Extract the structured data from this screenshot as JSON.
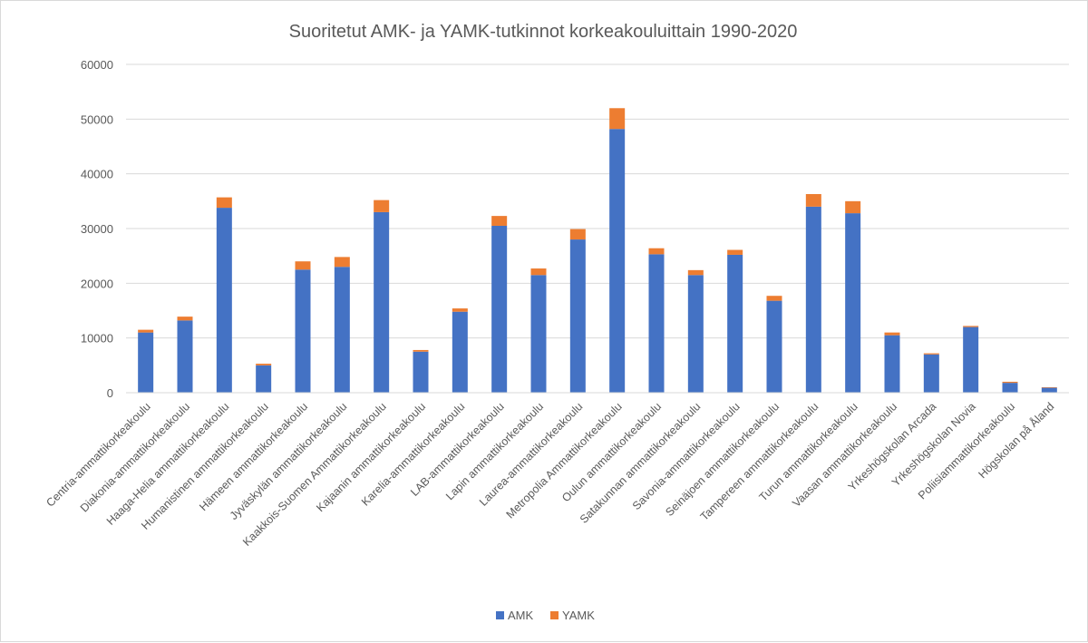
{
  "chart_data": {
    "type": "bar",
    "stacked": true,
    "title": "Suoritetut AMK- ja YAMK-tutkinnot korkeakouluittain 1990-2020",
    "ylim": [
      0,
      60000
    ],
    "yticks": [
      0,
      10000,
      20000,
      30000,
      40000,
      50000,
      60000
    ],
    "grid": true,
    "legend_position": "bottom",
    "categories": [
      "Centria-ammattikorkeakoulu",
      "Diakonia-ammattikorkeakoulu",
      "Haaga-Helia ammattikorkeakoulu",
      "Humanistinen ammattikorkeakoulu",
      "Hämeen ammattikorkeakoulu",
      "Jyväskylän ammattikorkeakoulu",
      "Kaakkois-Suomen Ammattikorkeakoulu",
      "Kajaanin ammattikorkeakoulu",
      "Karelia-ammattikorkeakoulu",
      "LAB-ammattikorkeakoulu",
      "Lapin ammattikorkeakoulu",
      "Laurea-ammattikorkeakoulu",
      "Metropolia Ammattikorkeakoulu",
      "Oulun ammattikorkeakoulu",
      "Satakunnan ammattikorkeakoulu",
      "Savonia-ammattikorkeakoulu",
      "Seinäjoen ammattikorkeakoulu",
      "Tampereen ammattikorkeakoulu",
      "Turun ammattikorkeakoulu",
      "Vaasan ammattikorkeakoulu",
      "Yrkeshögskolan Arcada",
      "Yrkeshögskolan Novia",
      "Poliisiammattikorkeakoulu",
      "Högskolan på Åland"
    ],
    "series": [
      {
        "name": "AMK",
        "color": "#4472c4",
        "values": [
          11000,
          13200,
          33800,
          5000,
          22500,
          23000,
          33000,
          7500,
          14800,
          30500,
          21500,
          28000,
          48200,
          25300,
          21500,
          25200,
          16800,
          34000,
          32800,
          10500,
          7000,
          12000,
          1800,
          900
        ]
      },
      {
        "name": "YAMK",
        "color": "#ed7d31",
        "values": [
          500,
          700,
          1900,
          300,
          1500,
          1800,
          2200,
          300,
          600,
          1800,
          1200,
          1900,
          3800,
          1100,
          900,
          900,
          900,
          2300,
          2200,
          500,
          200,
          200,
          200,
          100
        ]
      }
    ]
  }
}
